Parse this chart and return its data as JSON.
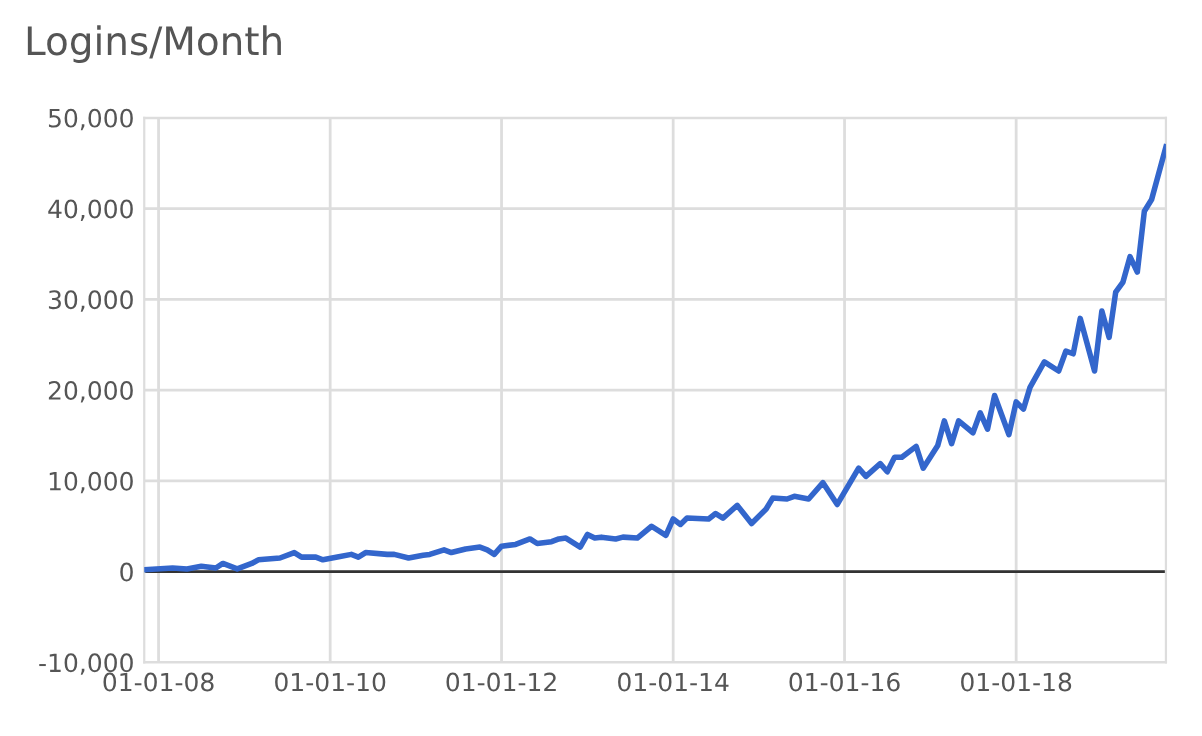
{
  "chart_data": {
    "type": "line",
    "title": "Logins/Month",
    "x": [
      "2007-11",
      "2008-03",
      "2008-05",
      "2008-07",
      "2008-09",
      "2008-10",
      "2008-12",
      "2009-02",
      "2009-03",
      "2009-06",
      "2009-08",
      "2009-09",
      "2009-11",
      "2009-12",
      "2010-02",
      "2010-04",
      "2010-05",
      "2010-06",
      "2010-09",
      "2010-10",
      "2010-12",
      "2011-02",
      "2011-03",
      "2011-05",
      "2011-06",
      "2011-08",
      "2011-10",
      "2011-11",
      "2011-12",
      "2012-01",
      "2012-03",
      "2012-05",
      "2012-06",
      "2012-08",
      "2012-09",
      "2012-10",
      "2012-12",
      "2013-01",
      "2013-02",
      "2013-03",
      "2013-05",
      "2013-06",
      "2013-08",
      "2013-10",
      "2013-12",
      "2014-01",
      "2014-02",
      "2014-03",
      "2014-06",
      "2014-07",
      "2014-08",
      "2014-10",
      "2014-12",
      "2015-02",
      "2015-03",
      "2015-05",
      "2015-06",
      "2015-08",
      "2015-10",
      "2015-12",
      "2016-03",
      "2016-04",
      "2016-06",
      "2016-07",
      "2016-08",
      "2016-09",
      "2016-11",
      "2016-12",
      "2017-02",
      "2017-03",
      "2017-04",
      "2017-05",
      "2017-07",
      "2017-08",
      "2017-09",
      "2017-10",
      "2017-12",
      "2018-01",
      "2018-02",
      "2018-03",
      "2018-05",
      "2018-07",
      "2018-08",
      "2018-09",
      "2018-10",
      "2018-12",
      "2019-01",
      "2019-02",
      "2019-03",
      "2019-04",
      "2019-05",
      "2019-06",
      "2019-07",
      "2019-08",
      "2019-10"
    ],
    "series": [
      {
        "color": "#3366cc",
        "values": [
          200,
          400,
          300,
          600,
          400,
          900,
          300,
          900,
          1300,
          1500,
          2100,
          1600,
          1600,
          1300,
          1600,
          1900,
          1600,
          2100,
          1900,
          1900,
          1500,
          1800,
          1900,
          2400,
          2100,
          2500,
          2700,
          2400,
          1900,
          2800,
          3000,
          3600,
          3100,
          3300,
          3600,
          3700,
          2700,
          4100,
          3700,
          3800,
          3600,
          3800,
          3700,
          5000,
          4000,
          5800,
          5200,
          5900,
          5800,
          6400,
          5900,
          7300,
          5300,
          6900,
          8100,
          8000,
          8300,
          8000,
          9800,
          7400,
          11400,
          10500,
          11900,
          11000,
          12600,
          12600,
          13800,
          11400,
          13900,
          16600,
          14100,
          16600,
          15300,
          17500,
          15700,
          19400,
          15100,
          18700,
          17900,
          20300,
          23100,
          22100,
          24300,
          24000,
          27900,
          22100,
          28700,
          25800,
          30800,
          31900,
          34700,
          33000,
          39700,
          41000,
          46800
        ]
      }
    ],
    "xlim": [
      "2007-11",
      "2019-10"
    ],
    "xticks": [
      {
        "value": "2008-01-01",
        "label": "01-01-08"
      },
      {
        "value": "2010-01-01",
        "label": "01-01-10"
      },
      {
        "value": "2012-01-01",
        "label": "01-01-12"
      },
      {
        "value": "2014-01-01",
        "label": "01-01-14"
      },
      {
        "value": "2016-01-01",
        "label": "01-01-16"
      },
      {
        "value": "2018-01-01",
        "label": "01-01-18"
      }
    ],
    "ylim": [
      -10000,
      50000
    ],
    "yticks": [
      {
        "value": -10000,
        "label": "-10,000"
      },
      {
        "value": 0,
        "label": "0"
      },
      {
        "value": 10000,
        "label": "10,000"
      },
      {
        "value": 20000,
        "label": "20,000"
      },
      {
        "value": 30000,
        "label": "30,000"
      },
      {
        "value": 40000,
        "label": "40,000"
      },
      {
        "value": 50000,
        "label": "50,000"
      }
    ],
    "grid": true,
    "ref_lines": [
      {
        "axis": "y",
        "value": 0,
        "color": "#333333"
      }
    ]
  }
}
